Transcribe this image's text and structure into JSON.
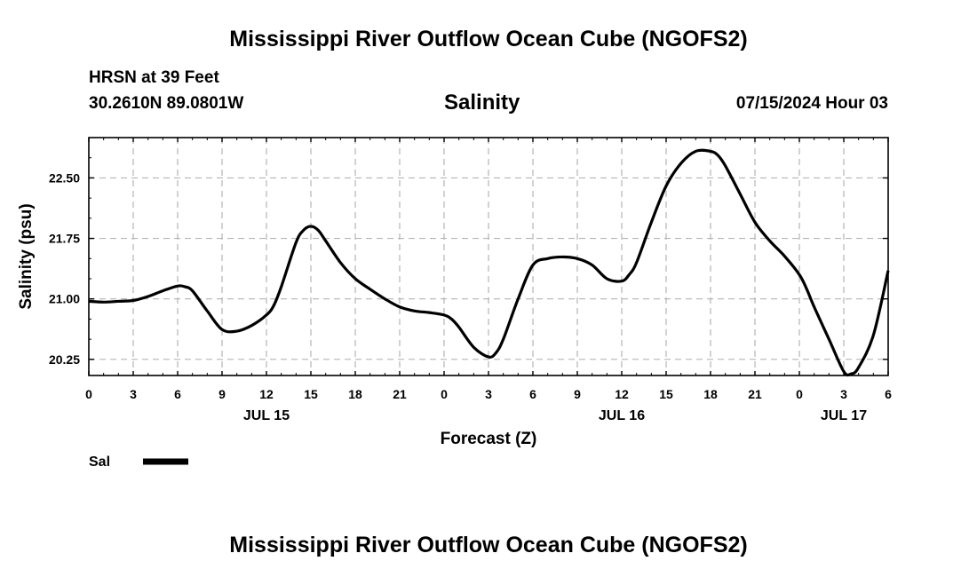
{
  "header": {
    "title": "Mississippi River Outflow Ocean Cube (NGOFS2)",
    "station": "HRSN at 39 Feet",
    "coords": "30.2610N  89.0801W",
    "variable": "Salinity",
    "timestamp": "07/15/2024 Hour 03"
  },
  "footer": {
    "title": "Mississippi River Outflow Ocean Cube (NGOFS2)"
  },
  "legend": {
    "label": "Sal"
  },
  "chart_data": {
    "type": "line",
    "title": "Salinity",
    "xlabel": "Forecast (Z)",
    "ylabel": "Salinity (psu)",
    "xlim": [
      0,
      54
    ],
    "ylim": [
      20.05,
      23.0
    ],
    "x_ticks": [
      0,
      3,
      6,
      9,
      12,
      15,
      18,
      21,
      24,
      27,
      30,
      33,
      36,
      39,
      42,
      45,
      48,
      51,
      54
    ],
    "x_tick_labels": [
      "0",
      "3",
      "6",
      "9",
      "12",
      "15",
      "18",
      "21",
      "0",
      "3",
      "6",
      "9",
      "12",
      "15",
      "18",
      "21",
      "0",
      "3",
      "6"
    ],
    "day_labels": [
      {
        "x": 12,
        "label": "JUL 15"
      },
      {
        "x": 36,
        "label": "JUL 16"
      },
      {
        "x": 51,
        "label": "JUL 17"
      }
    ],
    "y_ticks": [
      20.25,
      21.0,
      21.75,
      22.5
    ],
    "y_tick_labels": [
      "20.25",
      "21.00",
      "21.75",
      "22.50"
    ],
    "grid": true,
    "series": [
      {
        "name": "Sal",
        "color": "#000000",
        "x": [
          0,
          1,
          2,
          3,
          4,
          5,
          6,
          6.5,
          7,
          8,
          9,
          10,
          11,
          12,
          12.5,
          13,
          14,
          14.5,
          15,
          15.5,
          16,
          17,
          18,
          19,
          20,
          21,
          22,
          23,
          24,
          24.5,
          25,
          26,
          27,
          27.5,
          28,
          29,
          30,
          31,
          32,
          33,
          34,
          35,
          36,
          36.5,
          37,
          38,
          39,
          40,
          41,
          42,
          42.5,
          43,
          44,
          45,
          46,
          47,
          48,
          48.5,
          49,
          50,
          51,
          51.5,
          52,
          53,
          54
        ],
        "y": [
          20.97,
          20.96,
          20.97,
          20.98,
          21.03,
          21.1,
          21.16,
          21.15,
          21.1,
          20.85,
          20.62,
          20.6,
          20.67,
          20.8,
          20.92,
          21.15,
          21.7,
          21.85,
          21.9,
          21.85,
          21.72,
          21.45,
          21.25,
          21.12,
          21.0,
          20.9,
          20.85,
          20.83,
          20.8,
          20.75,
          20.65,
          20.4,
          20.28,
          20.33,
          20.5,
          21.0,
          21.42,
          21.5,
          21.52,
          21.5,
          21.42,
          21.25,
          21.22,
          21.3,
          21.45,
          21.95,
          22.4,
          22.68,
          22.83,
          22.83,
          22.78,
          22.65,
          22.3,
          21.95,
          21.72,
          21.53,
          21.3,
          21.12,
          20.9,
          20.5,
          20.1,
          20.07,
          20.15,
          20.55,
          21.35
        ]
      }
    ]
  }
}
